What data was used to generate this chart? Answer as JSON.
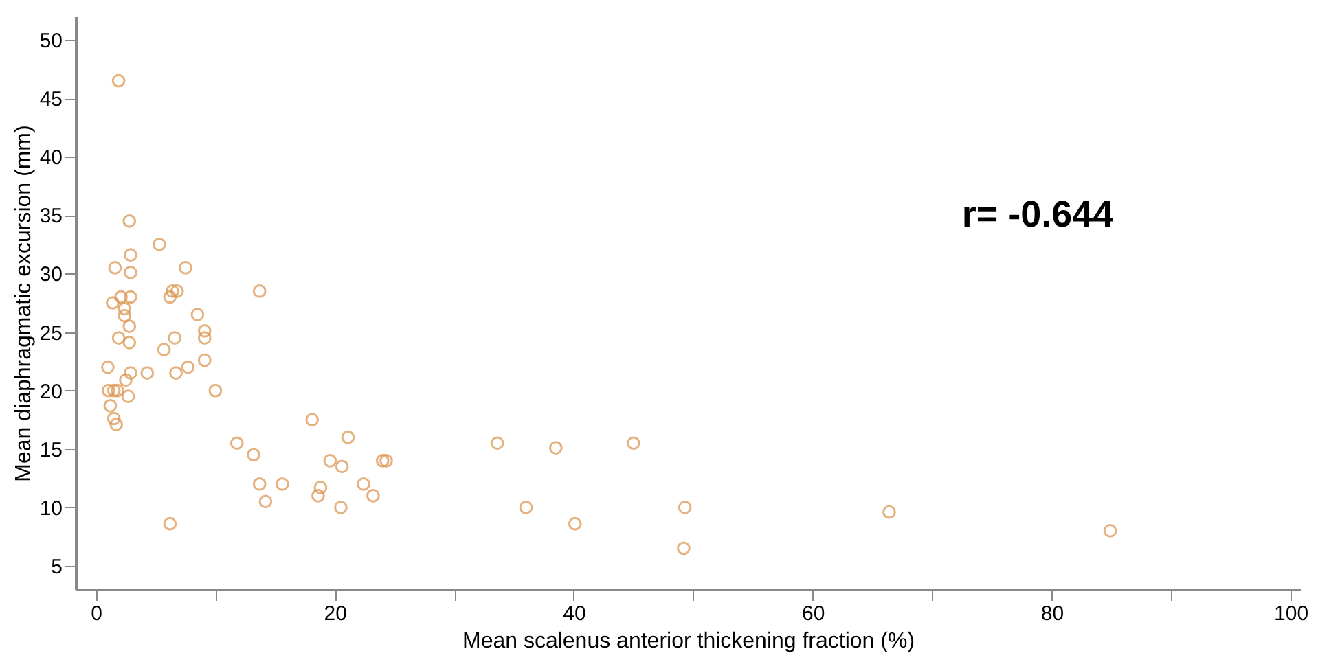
{
  "chart_data": {
    "type": "scatter",
    "xlabel": "Mean scalenus anterior thickening fraction (%)",
    "ylabel": "Mean diaphragmatic excursion (mm)",
    "annotations": [
      "r= -0.644"
    ],
    "marker": "circle",
    "grid": false,
    "xlim": [
      -1.7,
      100.8
    ],
    "xticks": [
      0,
      {
        "value": 10,
        "label": null
      },
      20,
      {
        "value": 30,
        "label": null
      },
      40,
      {
        "value": 50,
        "label": null
      },
      60,
      {
        "value": 70,
        "label": null
      },
      80,
      {
        "value": 90,
        "label": null
      },
      100
    ],
    "ylim": [
      3,
      52
    ],
    "yticks": [
      5,
      10,
      15,
      20,
      25,
      30,
      35,
      40,
      45,
      50
    ],
    "series": [
      {
        "color": "#d9914a",
        "x": [
          1.9,
          2.8,
          5.3,
          1.6,
          2.9,
          7.5,
          2.9,
          13.7,
          1.4,
          2.1,
          2.9,
          2.4,
          2.4,
          6.2,
          6.8,
          6.4,
          8.5,
          2.8,
          1.9,
          2.8,
          6.6,
          9.1,
          9.1,
          5.7,
          1.0,
          9.1,
          6.7,
          7.7,
          4.3,
          2.9,
          2.5,
          1.05,
          1.5,
          1.8,
          2.7,
          10.0,
          1.2,
          1.5,
          1.7,
          6.2,
          11.8,
          13.2,
          13.7,
          14.2,
          18.1,
          21.1,
          19.6,
          20.6,
          24.0,
          24.3,
          15.6,
          18.8,
          18.6,
          22.4,
          23.2,
          20.5,
          33.6,
          38.5,
          45.0,
          36.0,
          40.1,
          49.3,
          49.2,
          66.4,
          84.9
        ],
        "values": [
          46.5,
          34.5,
          32.5,
          30.5,
          30.1,
          30.5,
          31.6,
          28.5,
          27.5,
          28.0,
          28.0,
          27.0,
          26.4,
          28.0,
          28.5,
          28.5,
          26.5,
          25.5,
          24.5,
          24.1,
          24.5,
          25.1,
          24.5,
          23.5,
          22.0,
          22.6,
          21.5,
          22.0,
          21.5,
          21.5,
          20.9,
          20.0,
          20.0,
          20.0,
          19.5,
          20.0,
          18.7,
          17.6,
          17.1,
          8.6,
          15.5,
          14.5,
          12.0,
          10.5,
          17.5,
          16.0,
          14.0,
          13.5,
          14.0,
          14.0,
          12.0,
          11.7,
          11.0,
          12.0,
          11.0,
          10.0,
          15.5,
          15.1,
          15.5,
          10.0,
          8.6,
          10.0,
          6.5,
          9.6,
          8.0
        ]
      }
    ]
  }
}
